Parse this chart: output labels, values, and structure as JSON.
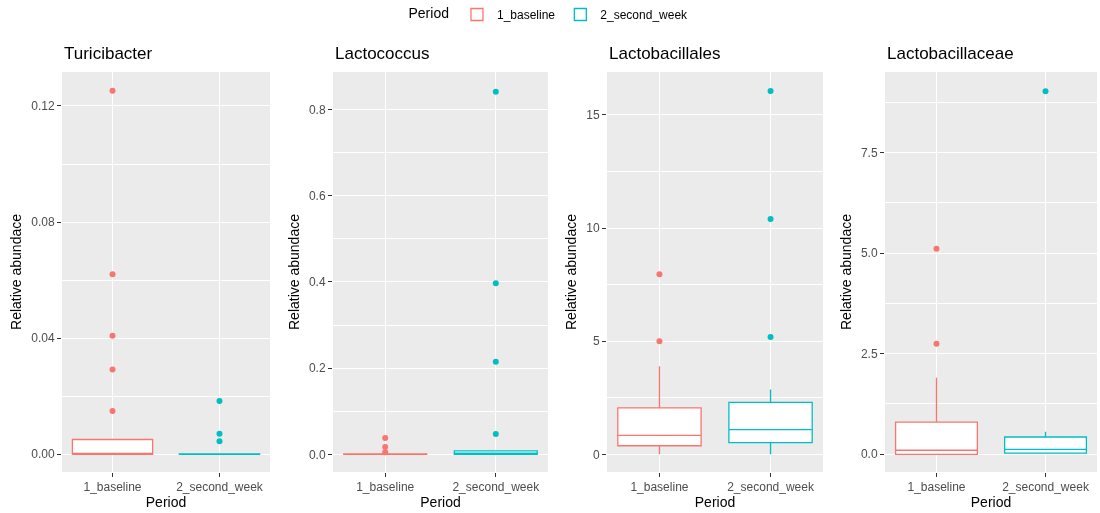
{
  "chart_data": [
    {
      "type": "box",
      "title": "Turicibacter",
      "xlabel": "Period",
      "ylabel": "Relative abundace",
      "legend_title": "Period",
      "legend": "top",
      "grid": true,
      "categories": [
        "1_baseline",
        "2_second_week"
      ],
      "ylim": [
        -0.0061,
        0.1317
      ],
      "yticks": [
        {
          "value": 0,
          "label": "0.00"
        },
        {
          "value": 0.02,
          "label": null
        },
        0.04,
        {
          "value": 0.06,
          "label": null
        },
        0.08,
        {
          "value": 0.1,
          "label": null
        },
        0.12
      ],
      "series": [
        {
          "name": "1_baseline",
          "color": "#f8766d",
          "boxes": [
            {
              "low": 0,
              "q1": 0,
              "median": 0.0003,
              "q3": 0.0051,
              "high": 0.0051,
              "outliers": [
                0.0149,
                0.0292,
                0.0408,
                0.062,
                0.1252
              ]
            },
            null
          ]
        },
        {
          "name": "2_second_week",
          "color": "#00bfc4",
          "boxes": [
            null,
            {
              "low": 0,
              "q1": 0,
              "median": 0,
              "q3": 0.0001,
              "high": 0.0002,
              "outliers": [
                0.0045,
                0.0071,
                0.0184
              ]
            }
          ]
        }
      ]
    },
    {
      "type": "box",
      "title": "Lactococcus",
      "xlabel": "Period",
      "ylabel": "Relative abundace",
      "legend": "top",
      "grid": true,
      "categories": [
        "1_baseline",
        "2_second_week"
      ],
      "ylim": [
        -0.041,
        0.887
      ],
      "yticks": [
        {
          "value": 0,
          "label": "0.0"
        },
        {
          "value": 0.1,
          "label": null
        },
        0.2,
        {
          "value": 0.3,
          "label": null
        },
        0.4,
        {
          "value": 0.5,
          "label": null
        },
        0.6,
        {
          "value": 0.7,
          "label": null
        },
        0.8
      ],
      "series": [
        {
          "name": "1_baseline",
          "color": "#f8766d",
          "boxes": [
            {
              "low": 0,
              "q1": 0,
              "median": 0.0005,
              "q3": 0.001,
              "high": 0.002,
              "outliers": [
                0.005,
                0.017,
                0.038
              ]
            },
            null
          ]
        },
        {
          "name": "2_second_week",
          "color": "#00bfc4",
          "boxes": [
            null,
            {
              "low": 0,
              "q1": 0,
              "median": 0.003,
              "q3": 0.008,
              "high": 0.008,
              "outliers": [
                0.047,
                0.215,
                0.397,
                0.841
              ]
            }
          ]
        }
      ]
    },
    {
      "type": "box",
      "title": "Lactobacillales",
      "xlabel": "Period",
      "ylabel": "Relative abundace",
      "legend": "top",
      "grid": true,
      "categories": [
        "1_baseline",
        "2_second_week"
      ],
      "ylim": [
        -0.78,
        16.9
      ],
      "yticks": [
        0,
        {
          "value": 2.5,
          "label": null
        },
        5,
        {
          "value": 7.5,
          "label": null
        },
        10,
        {
          "value": 12.5,
          "label": null
        },
        15
      ],
      "series": [
        {
          "name": "1_baseline",
          "color": "#f8766d",
          "boxes": [
            {
              "low": 0,
              "q1": 0.38,
              "median": 0.84,
              "q3": 2.05,
              "high": 3.89,
              "outliers": [
                5.0,
                7.96
              ]
            },
            null
          ]
        },
        {
          "name": "2_second_week",
          "color": "#00bfc4",
          "boxes": [
            null,
            {
              "low": 0,
              "q1": 0.52,
              "median": 1.09,
              "q3": 2.3,
              "high": 2.87,
              "outliers": [
                5.19,
                10.4,
                16.06
              ]
            }
          ]
        }
      ]
    },
    {
      "type": "box",
      "title": "Lactobacillaceae",
      "xlabel": "Period",
      "ylabel": "Relative abundace",
      "legend": "top",
      "grid": true,
      "categories": [
        "1_baseline",
        "2_second_week"
      ],
      "ylim": [
        -0.44,
        9.5
      ],
      "yticks": [
        {
          "value": 0,
          "label": "0.0"
        },
        {
          "value": 1.25,
          "label": null
        },
        2.5,
        {
          "value": 3.75,
          "label": null
        },
        {
          "value": 5,
          "label": "5.0"
        },
        {
          "value": 6.25,
          "label": null
        },
        7.5,
        {
          "value": 8.75,
          "label": null
        }
      ],
      "series": [
        {
          "name": "1_baseline",
          "color": "#f8766d",
          "boxes": [
            {
              "low": 0,
              "q1": 0,
              "median": 0.1,
              "q3": 0.8,
              "high": 1.9,
              "outliers": [
                2.75,
                5.11
              ]
            },
            null
          ]
        },
        {
          "name": "2_second_week",
          "color": "#00bfc4",
          "boxes": [
            null,
            {
              "low": 0.02,
              "q1": 0.03,
              "median": 0.12,
              "q3": 0.43,
              "high": 0.56,
              "outliers": [
                9.02
              ]
            }
          ]
        }
      ]
    }
  ]
}
